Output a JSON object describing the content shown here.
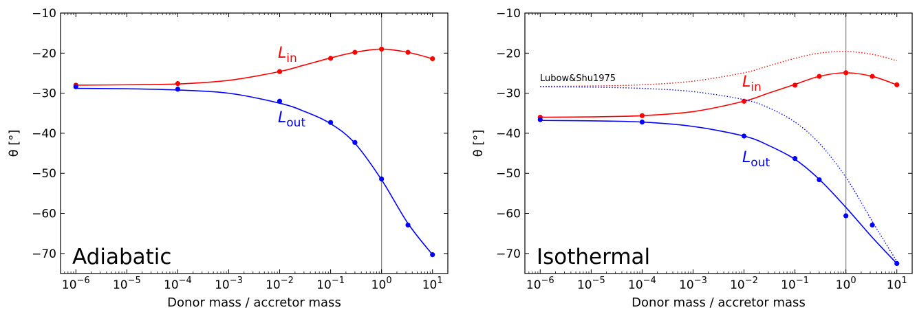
{
  "chart_data": [
    {
      "type": "line",
      "panel_label": "Adiabatic",
      "xlabel": "Donor mass / accretor mass",
      "ylabel": "θ [°]",
      "xscale": "log",
      "xlim": [
        5e-07,
        20
      ],
      "ylim": [
        -75,
        -10
      ],
      "x_ticks": [
        "10^-6",
        "10^-5",
        "10^-4",
        "10^-3",
        "10^-2",
        "10^-1",
        "10^0",
        "10^1"
      ],
      "y_ticks": [
        -70,
        -60,
        -50,
        -40,
        -30,
        -20,
        -10
      ],
      "vertical_line_x": 1,
      "grid": false,
      "series": [
        {
          "name": "L_in",
          "label_main": "L",
          "label_sub": "in",
          "color": "#ff0000",
          "points": {
            "x": [
              1e-06,
              0.0001,
              0.01,
              0.1,
              0.3,
              1,
              3.3,
              10
            ],
            "y": [
              -28.0,
              -27.6,
              -24.6,
              -21.3,
              -19.8,
              -19.0,
              -19.8,
              -21.4
            ]
          },
          "curve": {
            "x": [
              1e-06,
              1e-05,
              0.0001,
              0.001,
              0.01,
              0.03,
              0.1,
              0.3,
              1,
              3.3,
              10
            ],
            "y": [
              -28.0,
              -27.9,
              -27.7,
              -26.8,
              -24.6,
              -23.0,
              -21.2,
              -19.8,
              -19.0,
              -19.8,
              -21.4
            ]
          }
        },
        {
          "name": "L_out",
          "label_main": "L",
          "label_sub": "out",
          "color": "#0000ff",
          "points": {
            "x": [
              1e-06,
              0.0001,
              0.01,
              0.1,
              0.3,
              1,
              3.3,
              10
            ],
            "y": [
              -28.4,
              -29.0,
              -32.0,
              -37.3,
              -42.3,
              -51.4,
              -62.9,
              -70.3
            ]
          },
          "curve": {
            "x": [
              1e-06,
              1e-05,
              0.0001,
              0.001,
              0.01,
              0.03,
              0.1,
              0.3,
              1,
              3.3,
              10
            ],
            "y": [
              -28.8,
              -28.9,
              -29.2,
              -30.0,
              -32.5,
              -34.5,
              -37.6,
              -42.5,
              -51.6,
              -62.5,
              -70.3
            ]
          }
        }
      ]
    },
    {
      "type": "line",
      "panel_label": "Isothermal",
      "xlabel": "Donor mass / accretor mass",
      "ylabel": "θ [°]",
      "xscale": "log",
      "xlim": [
        5e-07,
        20
      ],
      "ylim": [
        -75,
        -10
      ],
      "x_ticks": [
        "10^-6",
        "10^-5",
        "10^-4",
        "10^-3",
        "10^-2",
        "10^-1",
        "10^0",
        "10^1"
      ],
      "y_ticks": [
        -70,
        -60,
        -50,
        -40,
        -30,
        -20,
        -10
      ],
      "vertical_line_x": 1,
      "grid": false,
      "annotation": "Lubow&Shu1975",
      "series": [
        {
          "name": "L_in",
          "label_main": "L",
          "label_sub": "in",
          "color": "#ff0000",
          "points": {
            "x": [
              1e-06,
              0.0001,
              0.01,
              0.1,
              0.3,
              1,
              3.3,
              10
            ],
            "y": [
              -36.0,
              -35.6,
              -32.0,
              -28.0,
              -25.8,
              -24.9,
              -25.8,
              -27.9
            ]
          },
          "curve": {
            "x": [
              1e-06,
              1e-05,
              0.0001,
              0.001,
              0.01,
              0.03,
              0.1,
              0.3,
              1,
              3.3,
              10
            ],
            "y": [
              -36.0,
              -35.9,
              -35.6,
              -34.6,
              -32.0,
              -30.0,
              -27.8,
              -25.8,
              -24.9,
              -25.8,
              -27.9
            ]
          }
        },
        {
          "name": "L_out",
          "label_main": "L",
          "label_sub": "out",
          "color": "#0000ff",
          "points": {
            "x": [
              1e-06,
              0.0001,
              0.01,
              0.1,
              0.3,
              1,
              3.3,
              10
            ],
            "y": [
              -36.6,
              -37.2,
              -40.7,
              -46.3,
              -51.6,
              -60.6,
              -62.9,
              -72.5
            ]
          },
          "curve": {
            "x": [
              1e-06,
              1e-05,
              0.0001,
              0.001,
              0.01,
              0.03,
              0.1,
              0.3,
              1,
              3.3,
              10
            ],
            "y": [
              -36.8,
              -36.9,
              -37.2,
              -38.3,
              -40.7,
              -43.0,
              -46.5,
              -51.5,
              -58.5,
              -66.0,
              -72.5
            ]
          }
        },
        {
          "name": "Lubow&Shu1975 L_in",
          "color": "#ff0000",
          "style": "dotted",
          "curve": {
            "x": [
              1e-06,
              1e-05,
              0.0001,
              0.001,
              0.01,
              0.03,
              0.1,
              0.3,
              1,
              3.3,
              10
            ],
            "y": [
              -28.3,
              -28.2,
              -27.9,
              -27.0,
              -24.9,
              -23.2,
              -21.3,
              -20.0,
              -19.6,
              -20.3,
              -21.9
            ]
          }
        },
        {
          "name": "Lubow&Shu1975 L_out",
          "color": "#0000ff",
          "style": "dotted",
          "curve": {
            "x": [
              1e-06,
              1e-05,
              0.0001,
              0.001,
              0.01,
              0.03,
              0.1,
              0.3,
              1,
              3.3,
              10
            ],
            "y": [
              -28.4,
              -28.5,
              -28.8,
              -29.6,
              -31.6,
              -33.6,
              -37.2,
              -42.5,
              -51.0,
              -62.0,
              -72.0
            ]
          }
        }
      ]
    }
  ]
}
